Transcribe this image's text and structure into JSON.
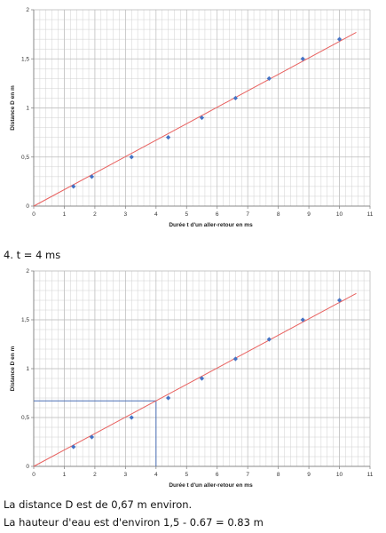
{
  "step_label": "4. t = 4 ms",
  "conclusion": {
    "line1": "La distance D est de 0,67 m environ.",
    "line2": "La hauteur d'eau est d'environ 1,5 - 0.67 = 0.83 m"
  },
  "colors": {
    "points": "#4472c4",
    "fit_line": "#e8605e",
    "guide_line": "#4a6fb5",
    "grid": "#d0d0d0",
    "axis": "#888888"
  },
  "chart_data": [
    {
      "type": "scatter",
      "title": "",
      "xlabel": "Durée t d'un aller-retour en ms",
      "ylabel": "Distance D en m",
      "xlim": [
        0,
        11
      ],
      "ylim": [
        0,
        2
      ],
      "xticks": [
        "0",
        "1",
        "2",
        "3",
        "4",
        "5",
        "6",
        "7",
        "8",
        "9",
        "10",
        "11"
      ],
      "yticks": [
        "0",
        "0,5",
        "1",
        "1,5",
        "2"
      ],
      "grid": true,
      "series": [
        {
          "x": [
            1.3,
            1.9,
            3.2,
            4.4,
            5.5,
            6.6,
            7.7,
            8.8,
            10.0
          ],
          "y": [
            0.2,
            0.3,
            0.5,
            0.7,
            0.9,
            1.1,
            1.3,
            1.5,
            1.7
          ]
        }
      ],
      "trendline": {
        "x": [
          0,
          10.55
        ],
        "y": [
          0,
          1.77
        ]
      }
    },
    {
      "type": "scatter",
      "title": "",
      "xlabel": "Durée t d'un aller-retour en ms",
      "ylabel": "Distance D en m",
      "xlim": [
        0,
        11
      ],
      "ylim": [
        0,
        2
      ],
      "xticks": [
        "0",
        "1",
        "2",
        "3",
        "4",
        "5",
        "6",
        "7",
        "8",
        "9",
        "10",
        "11"
      ],
      "yticks": [
        "0",
        "0,5",
        "1",
        "1,5",
        "2"
      ],
      "grid": true,
      "series": [
        {
          "x": [
            1.3,
            1.9,
            3.2,
            4.4,
            5.5,
            6.6,
            7.7,
            8.8,
            10.0
          ],
          "y": [
            0.2,
            0.3,
            0.5,
            0.7,
            0.9,
            1.1,
            1.3,
            1.5,
            1.7
          ]
        }
      ],
      "trendline": {
        "x": [
          0,
          10.55
        ],
        "y": [
          0,
          1.77
        ]
      },
      "guide": {
        "x": 4,
        "y": 0.67
      }
    }
  ]
}
